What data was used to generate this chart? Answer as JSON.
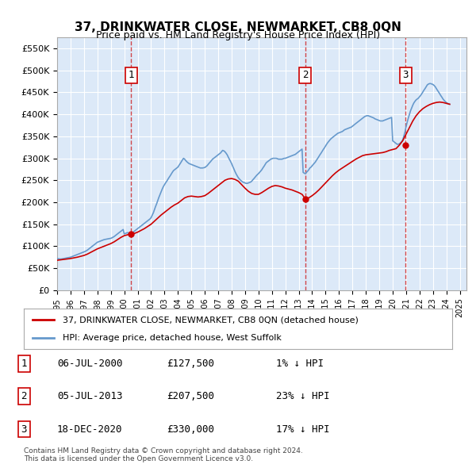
{
  "title": "37, DRINKWATER CLOSE, NEWMARKET, CB8 0QN",
  "subtitle": "Price paid vs. HM Land Registry's House Price Index (HPI)",
  "ylabel": "",
  "xlim_start": 1995.0,
  "xlim_end": 2025.5,
  "ylim_min": 0,
  "ylim_max": 575000,
  "yticks": [
    0,
    50000,
    100000,
    150000,
    200000,
    250000,
    300000,
    350000,
    400000,
    450000,
    500000,
    550000
  ],
  "background_color": "#dce9f8",
  "plot_bg_color": "#dce9f8",
  "red_line_color": "#cc0000",
  "blue_line_color": "#6699cc",
  "transaction_dates": [
    2000.5,
    2013.5,
    2020.96
  ],
  "transaction_values": [
    127500,
    207500,
    330000
  ],
  "transaction_labels": [
    "1",
    "2",
    "3"
  ],
  "legend_label_red": "37, DRINKWATER CLOSE, NEWMARKET, CB8 0QN (detached house)",
  "legend_label_blue": "HPI: Average price, detached house, West Suffolk",
  "table_rows": [
    [
      "1",
      "06-JUL-2000",
      "£127,500",
      "1% ↓ HPI"
    ],
    [
      "2",
      "05-JUL-2013",
      "£207,500",
      "23% ↓ HPI"
    ],
    [
      "3",
      "18-DEC-2020",
      "£330,000",
      "17% ↓ HPI"
    ]
  ],
  "footnote": "Contains HM Land Registry data © Crown copyright and database right 2024.\nThis data is licensed under the Open Government Licence v3.0.",
  "hpi_data": {
    "years": [
      1995.0,
      1995.08,
      1995.17,
      1995.25,
      1995.33,
      1995.42,
      1995.5,
      1995.58,
      1995.67,
      1995.75,
      1995.83,
      1995.92,
      1996.0,
      1996.08,
      1996.17,
      1996.25,
      1996.33,
      1996.42,
      1996.5,
      1996.58,
      1996.67,
      1996.75,
      1996.83,
      1996.92,
      1997.0,
      1997.08,
      1997.17,
      1997.25,
      1997.33,
      1997.42,
      1997.5,
      1997.58,
      1997.67,
      1997.75,
      1997.83,
      1997.92,
      1998.0,
      1998.08,
      1998.17,
      1998.25,
      1998.33,
      1998.42,
      1998.5,
      1998.58,
      1998.67,
      1998.75,
      1998.83,
      1998.92,
      1999.0,
      1999.08,
      1999.17,
      1999.25,
      1999.33,
      1999.42,
      1999.5,
      1999.58,
      1999.67,
      1999.75,
      1999.83,
      1999.92,
      2000.0,
      2000.08,
      2000.17,
      2000.25,
      2000.33,
      2000.42,
      2000.5,
      2000.58,
      2000.67,
      2000.75,
      2000.83,
      2000.92,
      2001.0,
      2001.08,
      2001.17,
      2001.25,
      2001.33,
      2001.42,
      2001.5,
      2001.58,
      2001.67,
      2001.75,
      2001.83,
      2001.92,
      2002.0,
      2002.08,
      2002.17,
      2002.25,
      2002.33,
      2002.42,
      2002.5,
      2002.58,
      2002.67,
      2002.75,
      2002.83,
      2002.92,
      2003.0,
      2003.08,
      2003.17,
      2003.25,
      2003.33,
      2003.42,
      2003.5,
      2003.58,
      2003.67,
      2003.75,
      2003.83,
      2003.92,
      2004.0,
      2004.08,
      2004.17,
      2004.25,
      2004.33,
      2004.42,
      2004.5,
      2004.58,
      2004.67,
      2004.75,
      2004.83,
      2004.92,
      2005.0,
      2005.08,
      2005.17,
      2005.25,
      2005.33,
      2005.42,
      2005.5,
      2005.58,
      2005.67,
      2005.75,
      2005.83,
      2005.92,
      2006.0,
      2006.08,
      2006.17,
      2006.25,
      2006.33,
      2006.42,
      2006.5,
      2006.58,
      2006.67,
      2006.75,
      2006.83,
      2006.92,
      2007.0,
      2007.08,
      2007.17,
      2007.25,
      2007.33,
      2007.42,
      2007.5,
      2007.58,
      2007.67,
      2007.75,
      2007.83,
      2007.92,
      2008.0,
      2008.08,
      2008.17,
      2008.25,
      2008.33,
      2008.42,
      2008.5,
      2008.58,
      2008.67,
      2008.75,
      2008.83,
      2008.92,
      2009.0,
      2009.08,
      2009.17,
      2009.25,
      2009.33,
      2009.42,
      2009.5,
      2009.58,
      2009.67,
      2009.75,
      2009.83,
      2009.92,
      2010.0,
      2010.08,
      2010.17,
      2010.25,
      2010.33,
      2010.42,
      2010.5,
      2010.58,
      2010.67,
      2010.75,
      2010.83,
      2010.92,
      2011.0,
      2011.08,
      2011.17,
      2011.25,
      2011.33,
      2011.42,
      2011.5,
      2011.58,
      2011.67,
      2011.75,
      2011.83,
      2011.92,
      2012.0,
      2012.08,
      2012.17,
      2012.25,
      2012.33,
      2012.42,
      2012.5,
      2012.58,
      2012.67,
      2012.75,
      2012.83,
      2012.92,
      2013.0,
      2013.08,
      2013.17,
      2013.25,
      2013.33,
      2013.42,
      2013.5,
      2013.58,
      2013.67,
      2013.75,
      2013.83,
      2013.92,
      2014.0,
      2014.08,
      2014.17,
      2014.25,
      2014.33,
      2014.42,
      2014.5,
      2014.58,
      2014.67,
      2014.75,
      2014.83,
      2014.92,
      2015.0,
      2015.08,
      2015.17,
      2015.25,
      2015.33,
      2015.42,
      2015.5,
      2015.58,
      2015.67,
      2015.75,
      2015.83,
      2015.92,
      2016.0,
      2016.08,
      2016.17,
      2016.25,
      2016.33,
      2016.42,
      2016.5,
      2016.58,
      2016.67,
      2016.75,
      2016.83,
      2016.92,
      2017.0,
      2017.08,
      2017.17,
      2017.25,
      2017.33,
      2017.42,
      2017.5,
      2017.58,
      2017.67,
      2017.75,
      2017.83,
      2017.92,
      2018.0,
      2018.08,
      2018.17,
      2018.25,
      2018.33,
      2018.42,
      2018.5,
      2018.58,
      2018.67,
      2018.75,
      2018.83,
      2018.92,
      2019.0,
      2019.08,
      2019.17,
      2019.25,
      2019.33,
      2019.42,
      2019.5,
      2019.58,
      2019.67,
      2019.75,
      2019.83,
      2019.92,
      2020.0,
      2020.08,
      2020.17,
      2020.25,
      2020.33,
      2020.42,
      2020.5,
      2020.58,
      2020.67,
      2020.75,
      2020.83,
      2020.92,
      2021.0,
      2021.08,
      2021.17,
      2021.25,
      2021.33,
      2021.42,
      2021.5,
      2021.58,
      2021.67,
      2021.75,
      2021.83,
      2021.92,
      2022.0,
      2022.08,
      2022.17,
      2022.25,
      2022.33,
      2022.42,
      2022.5,
      2022.58,
      2022.67,
      2022.75,
      2022.83,
      2022.92,
      2023.0,
      2023.08,
      2023.17,
      2023.25,
      2023.33,
      2023.42,
      2023.5,
      2023.58,
      2023.67,
      2023.75,
      2023.83,
      2023.92,
      2024.0,
      2024.08,
      2024.17,
      2024.25
    ],
    "values": [
      72000,
      71500,
      71000,
      70800,
      71000,
      71500,
      72000,
      72500,
      73000,
      73500,
      74000,
      74500,
      75000,
      76000,
      77000,
      78000,
      79000,
      80000,
      81000,
      82000,
      83000,
      84000,
      85000,
      86000,
      87000,
      88000,
      89500,
      91000,
      93000,
      95000,
      97000,
      99000,
      101000,
      103000,
      105000,
      107000,
      109000,
      110000,
      111000,
      112000,
      113000,
      114000,
      115000,
      115500,
      116000,
      116500,
      117000,
      117500,
      118000,
      119000,
      120500,
      122000,
      124000,
      126000,
      128000,
      130000,
      132000,
      134000,
      136000,
      138000,
      128000,
      129000,
      130000,
      131000,
      129000,
      128500,
      128800,
      130000,
      132000,
      134000,
      136000,
      138000,
      140000,
      142000,
      144000,
      146000,
      148000,
      150000,
      152000,
      154000,
      156000,
      158000,
      160000,
      162000,
      165000,
      170000,
      176000,
      183000,
      190000,
      197000,
      204000,
      211000,
      218000,
      224000,
      230000,
      236000,
      240000,
      244000,
      248000,
      252000,
      256000,
      260000,
      264000,
      268000,
      272000,
      274000,
      276000,
      278000,
      280000,
      284000,
      288000,
      292000,
      296000,
      300000,
      298000,
      295000,
      292000,
      290000,
      288000,
      287000,
      286000,
      285000,
      284000,
      283000,
      282000,
      281000,
      280000,
      279000,
      278000,
      278000,
      278000,
      278500,
      279000,
      281000,
      283000,
      286000,
      289000,
      292000,
      295000,
      298000,
      300000,
      302000,
      304000,
      306000,
      308000,
      310000,
      312000,
      315000,
      318000,
      317000,
      315000,
      312000,
      308000,
      303000,
      298000,
      293000,
      288000,
      282000,
      276000,
      270000,
      265000,
      260000,
      256000,
      253000,
      250000,
      248000,
      246000,
      245000,
      244000,
      243000,
      243000,
      244000,
      245000,
      246000,
      248000,
      251000,
      254000,
      257000,
      260000,
      263000,
      265000,
      268000,
      271000,
      274000,
      278000,
      282000,
      286000,
      290000,
      292000,
      294000,
      296000,
      298000,
      299000,
      300000,
      300000,
      300000,
      300000,
      299000,
      298000,
      298000,
      298000,
      298000,
      299000,
      300000,
      300000,
      301000,
      302000,
      303000,
      304000,
      305000,
      306000,
      307000,
      308000,
      309000,
      311000,
      313000,
      315000,
      317000,
      319000,
      321000,
      268000,
      266000,
      265000,
      268000,
      271000,
      274000,
      278000,
      280000,
      283000,
      286000,
      289000,
      292000,
      296000,
      300000,
      304000,
      308000,
      312000,
      316000,
      320000,
      324000,
      328000,
      332000,
      336000,
      339000,
      342000,
      345000,
      347000,
      349000,
      351000,
      353000,
      355000,
      357000,
      358000,
      359000,
      360000,
      361000,
      363000,
      365000,
      366000,
      367000,
      368000,
      369000,
      370000,
      371000,
      373000,
      375000,
      377000,
      379000,
      381000,
      383000,
      385000,
      387000,
      389000,
      391000,
      393000,
      395000,
      396000,
      397000,
      397000,
      396000,
      395000,
      394000,
      393000,
      392000,
      390000,
      389000,
      388000,
      387000,
      386000,
      385000,
      385000,
      385000,
      386000,
      387000,
      388000,
      389000,
      390000,
      391000,
      392000,
      393000,
      340000,
      338000,
      336000,
      334000,
      332000,
      332000,
      333000,
      335000,
      338000,
      342000,
      350000,
      360000,
      372000,
      382000,
      392000,
      400000,
      408000,
      415000,
      421000,
      426000,
      430000,
      433000,
      435000,
      437000,
      440000,
      443000,
      447000,
      451000,
      455000,
      459000,
      463000,
      467000,
      469000,
      470000,
      470000,
      469000,
      468000,
      466000,
      463000,
      459000,
      455000,
      451000,
      447000,
      443000,
      439000,
      435000,
      432000,
      429000,
      427000,
      425000,
      424000,
      423000
    ]
  },
  "red_line_data": {
    "years": [
      1995.0,
      1995.25,
      1995.5,
      1995.75,
      1996.0,
      1996.25,
      1996.5,
      1996.75,
      1997.0,
      1997.25,
      1997.5,
      1997.75,
      1998.0,
      1998.25,
      1998.5,
      1998.75,
      1999.0,
      1999.25,
      1999.5,
      1999.75,
      2000.0,
      2000.25,
      2000.5,
      2000.75,
      2001.0,
      2001.25,
      2001.5,
      2001.75,
      2002.0,
      2002.25,
      2002.5,
      2002.75,
      2003.0,
      2003.25,
      2003.5,
      2003.75,
      2004.0,
      2004.25,
      2004.5,
      2004.75,
      2005.0,
      2005.25,
      2005.5,
      2005.75,
      2006.0,
      2006.25,
      2006.5,
      2006.75,
      2007.0,
      2007.25,
      2007.5,
      2007.75,
      2008.0,
      2008.25,
      2008.5,
      2008.75,
      2009.0,
      2009.25,
      2009.5,
      2009.75,
      2010.0,
      2010.25,
      2010.5,
      2010.75,
      2011.0,
      2011.25,
      2011.5,
      2011.75,
      2012.0,
      2012.25,
      2012.5,
      2012.75,
      2013.0,
      2013.25,
      2013.5,
      2013.75,
      2014.0,
      2014.25,
      2014.5,
      2014.75,
      2015.0,
      2015.25,
      2015.5,
      2015.75,
      2016.0,
      2016.25,
      2016.5,
      2016.75,
      2017.0,
      2017.25,
      2017.5,
      2017.75,
      2018.0,
      2018.25,
      2018.5,
      2018.75,
      2019.0,
      2019.25,
      2019.5,
      2019.75,
      2020.0,
      2020.25,
      2020.5,
      2020.75,
      2021.0,
      2021.25,
      2021.5,
      2021.75,
      2022.0,
      2022.25,
      2022.5,
      2022.75,
      2023.0,
      2023.25,
      2023.5,
      2023.75,
      2024.0,
      2024.25
    ],
    "values": [
      68000,
      69000,
      70000,
      71000,
      72000,
      73500,
      75000,
      77000,
      79000,
      82000,
      86000,
      90000,
      94000,
      97000,
      100000,
      103000,
      106000,
      110000,
      115000,
      120000,
      124000,
      126000,
      127500,
      129000,
      132000,
      136000,
      140000,
      145000,
      150000,
      157000,
      164000,
      171000,
      177000,
      183000,
      189000,
      194000,
      198000,
      204000,
      210000,
      213000,
      214000,
      213000,
      212000,
      213000,
      215000,
      220000,
      226000,
      232000,
      238000,
      244000,
      250000,
      253000,
      254000,
      252000,
      248000,
      240000,
      232000,
      225000,
      220000,
      218000,
      218000,
      222000,
      227000,
      232000,
      236000,
      238000,
      237000,
      235000,
      232000,
      230000,
      228000,
      225000,
      222000,
      218000,
      207500,
      210000,
      215000,
      221000,
      228000,
      236000,
      244000,
      252000,
      260000,
      267000,
      273000,
      278000,
      283000,
      288000,
      293000,
      298000,
      302000,
      306000,
      308000,
      309000,
      310000,
      311000,
      312000,
      313000,
      315000,
      318000,
      320000,
      322000,
      330000,
      340000,
      355000,
      370000,
      385000,
      397000,
      406000,
      413000,
      418000,
      422000,
      425000,
      427000,
      428000,
      427000,
      425000,
      423000
    ]
  }
}
